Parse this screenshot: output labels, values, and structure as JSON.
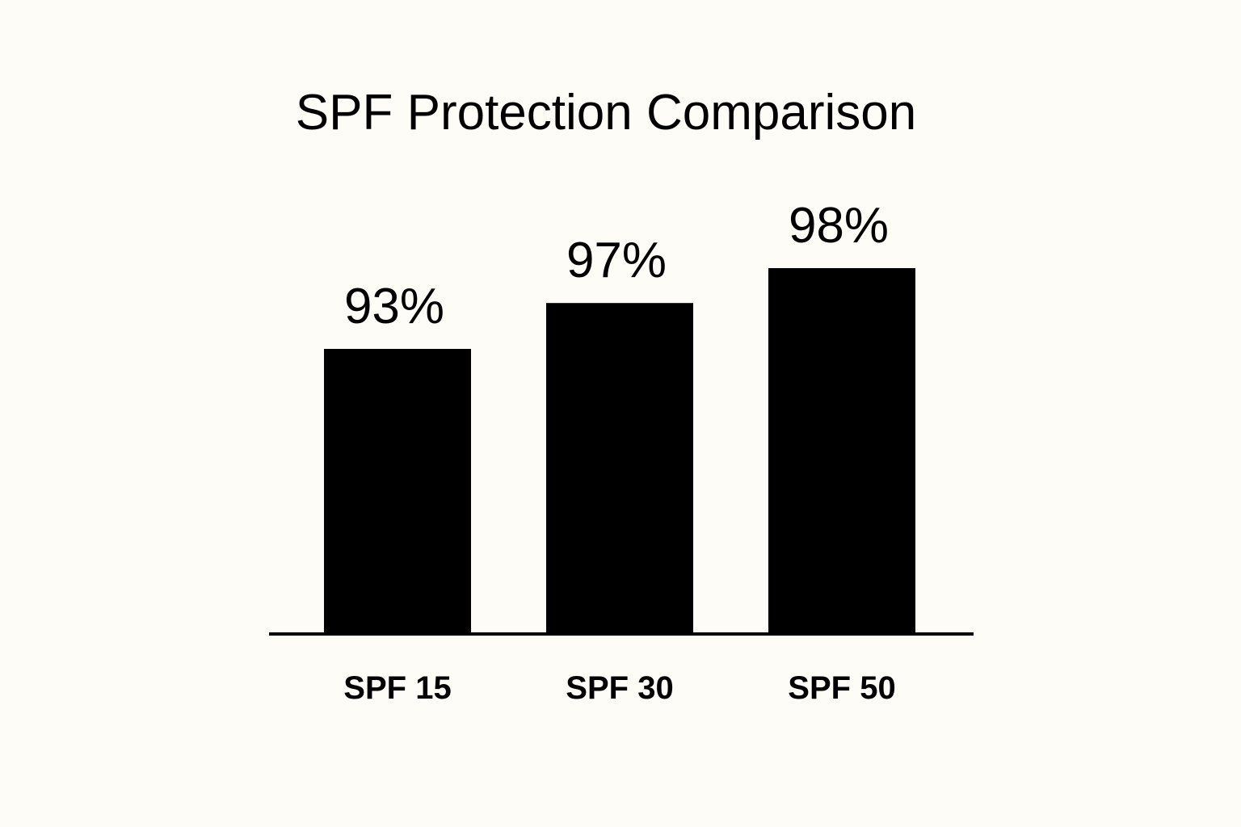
{
  "chart_data": {
    "type": "bar",
    "title": "SPF Protection Comparison",
    "categories": [
      "SPF 15",
      "SPF 30",
      "SPF 50"
    ],
    "values": [
      93,
      97,
      98
    ],
    "value_labels": [
      "93%",
      "97%",
      "98%"
    ],
    "xlabel": "",
    "ylabel": "",
    "grid": false,
    "legend": "none",
    "colors": {
      "background": "#fdfcf7",
      "bar": "#000000",
      "text": "#000000",
      "axis": "#000000"
    }
  }
}
